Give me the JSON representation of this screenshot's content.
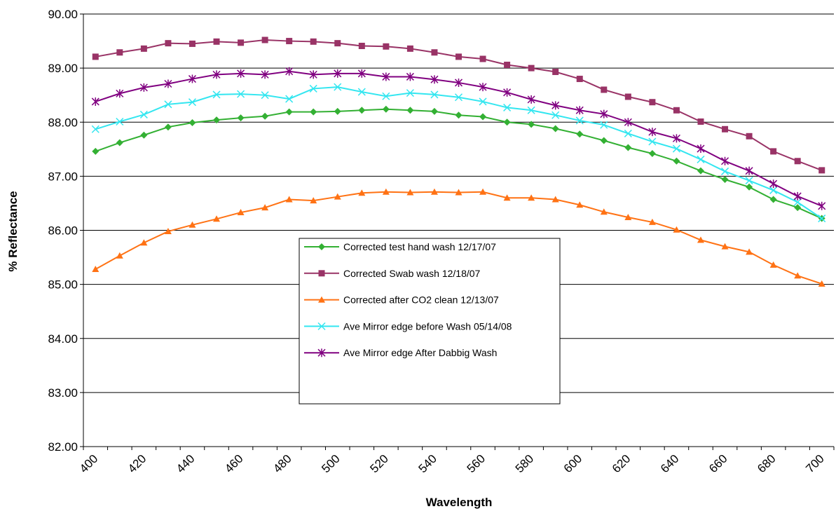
{
  "chart_data": {
    "type": "line",
    "x_label": "Wavelength",
    "y_label": "% Reflectance",
    "categories": [
      400,
      null,
      420,
      null,
      440,
      null,
      460,
      null,
      480,
      null,
      500,
      null,
      520,
      null,
      540,
      null,
      560,
      null,
      580,
      null,
      600,
      null,
      620,
      null,
      640,
      null,
      660,
      null,
      680,
      null,
      700
    ],
    "ylim": [
      82,
      90
    ],
    "yticks": [
      {
        "value": 82,
        "label": "82.00"
      },
      {
        "value": 83,
        "label": "83.00"
      },
      {
        "value": 84,
        "label": "84.00"
      },
      {
        "value": 85,
        "label": "85.00"
      },
      {
        "value": 86,
        "label": "86.00"
      },
      {
        "value": 87,
        "label": "87.00"
      },
      {
        "value": 88,
        "label": "88.00"
      },
      {
        "value": 89,
        "label": "89.00"
      },
      {
        "value": 90,
        "label": "90.00"
      }
    ],
    "grid": true,
    "series": [
      {
        "name": "Corrected test hand wash 12/17/07",
        "color": "#33b033",
        "marker": "diamond",
        "values": [
          87.46,
          87.62,
          87.76,
          87.91,
          87.99,
          88.04,
          88.08,
          88.11,
          88.19,
          88.19,
          88.2,
          88.22,
          88.24,
          88.22,
          88.2,
          88.13,
          88.1,
          88.0,
          87.96,
          87.88,
          87.78,
          87.66,
          87.53,
          87.42,
          87.28,
          87.1,
          86.94,
          86.8,
          86.57,
          86.42,
          86.22
        ]
      },
      {
        "name": "Corrected Swab wash 12/18/07",
        "color": "#993366",
        "marker": "square",
        "values": [
          89.21,
          89.29,
          89.36,
          89.46,
          89.45,
          89.49,
          89.47,
          89.52,
          89.5,
          89.49,
          89.46,
          89.41,
          89.4,
          89.36,
          89.29,
          89.21,
          89.17,
          89.06,
          89.0,
          88.93,
          88.8,
          88.6,
          88.47,
          88.37,
          88.22,
          88.01,
          87.87,
          87.74,
          87.46,
          87.28,
          87.11
        ]
      },
      {
        "name": "Corrected after CO2 clean 12/13/07",
        "color": "#ff7214",
        "marker": "triangle",
        "values": [
          85.28,
          85.53,
          85.77,
          85.98,
          86.1,
          86.21,
          86.33,
          86.42,
          86.57,
          86.55,
          86.62,
          86.69,
          86.71,
          86.7,
          86.71,
          86.7,
          86.71,
          86.6,
          86.6,
          86.57,
          86.47,
          86.34,
          86.24,
          86.15,
          86.01,
          85.82,
          85.7,
          85.6,
          85.36,
          85.16,
          85.01
        ]
      },
      {
        "name": "Ave Mirror edge before Wash 05/14/08",
        "color": "#33e6f0",
        "marker": "x",
        "values": [
          87.87,
          88.01,
          88.14,
          88.33,
          88.37,
          88.51,
          88.52,
          88.5,
          88.43,
          88.62,
          88.65,
          88.56,
          88.48,
          88.54,
          88.51,
          88.46,
          88.38,
          88.27,
          88.22,
          88.13,
          88.03,
          87.95,
          87.79,
          87.64,
          87.51,
          87.31,
          87.09,
          86.92,
          86.74,
          86.52,
          86.22
        ]
      },
      {
        "name": "Ave Mirror edge After Dabbig Wash",
        "color": "#800080",
        "marker": "star",
        "values": [
          88.38,
          88.53,
          88.64,
          88.71,
          88.8,
          88.88,
          88.9,
          88.88,
          88.94,
          88.88,
          88.9,
          88.9,
          88.84,
          88.84,
          88.79,
          88.73,
          88.65,
          88.55,
          88.42,
          88.31,
          88.22,
          88.15,
          88.0,
          87.82,
          87.7,
          87.51,
          87.28,
          87.1,
          86.86,
          86.63,
          86.45
        ]
      }
    ]
  }
}
